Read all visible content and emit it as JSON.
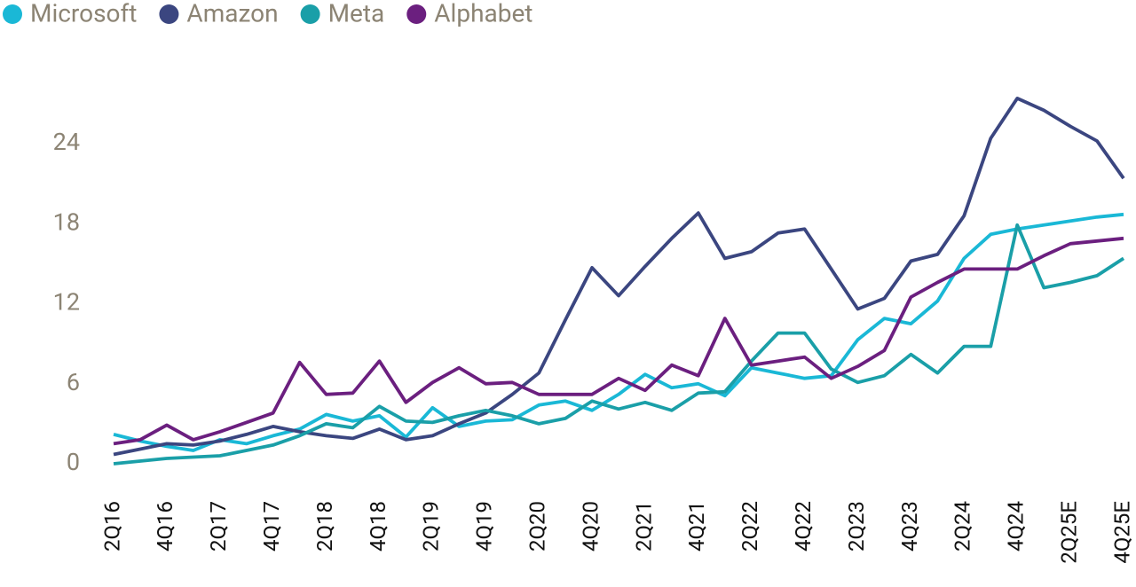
{
  "chart_data": {
    "type": "line",
    "categories": [
      "2Q16",
      null,
      "4Q16",
      null,
      "2Q17",
      null,
      "4Q17",
      null,
      "2Q18",
      null,
      "4Q18",
      null,
      "2Q19",
      null,
      "4Q19",
      null,
      "2Q20",
      null,
      "4Q20",
      null,
      "2Q21",
      null,
      "4Q21",
      null,
      "2Q22",
      null,
      "4Q22",
      null,
      "2Q23",
      null,
      "4Q23",
      null,
      "2Q24",
      null,
      "4Q24",
      null,
      "2Q25E",
      null,
      "4Q25E"
    ],
    "series": [
      {
        "name": "Microsoft",
        "color": "#1ab8d6",
        "values": [
          2.2,
          1.7,
          1.3,
          1.0,
          1.8,
          1.5,
          2.1,
          2.6,
          3.7,
          3.2,
          3.6,
          2.0,
          4.2,
          2.8,
          3.2,
          3.3,
          4.4,
          4.7,
          4.0,
          5.2,
          6.7,
          5.7,
          6.0,
          5.1,
          7.2,
          6.8,
          6.4,
          6.6,
          9.3,
          10.9,
          10.5,
          12.2,
          15.4,
          17.2,
          17.6,
          17.9,
          18.2,
          18.5,
          18.7
        ]
      },
      {
        "name": "Amazon",
        "color": "#3b4680",
        "values": [
          0.7,
          1.1,
          1.5,
          1.4,
          1.7,
          2.2,
          2.8,
          2.4,
          2.1,
          1.9,
          2.6,
          1.8,
          2.1,
          3.0,
          3.8,
          5.2,
          6.8,
          10.8,
          14.7,
          12.6,
          14.8,
          16.9,
          18.8,
          15.4,
          15.9,
          17.3,
          17.6,
          14.6,
          11.6,
          12.4,
          15.2,
          15.7,
          18.6,
          24.4,
          27.4,
          26.5,
          25.3,
          24.2,
          21.4
        ]
      },
      {
        "name": "Meta",
        "color": "#1a9fa8",
        "values": [
          0.0,
          0.2,
          0.4,
          0.5,
          0.6,
          1.0,
          1.4,
          2.1,
          3.0,
          2.7,
          4.3,
          3.2,
          3.1,
          3.6,
          4.0,
          3.6,
          3.0,
          3.4,
          4.7,
          4.1,
          4.6,
          4.0,
          5.3,
          5.4,
          7.7,
          9.8,
          9.8,
          7.1,
          6.1,
          6.6,
          8.2,
          6.8,
          8.8,
          8.8,
          17.9,
          13.2,
          13.6,
          14.1,
          15.4
        ]
      },
      {
        "name": "Alphabet",
        "color": "#6b1f7f",
        "values": [
          1.5,
          1.8,
          2.9,
          1.8,
          2.4,
          3.1,
          3.8,
          7.6,
          5.2,
          5.3,
          7.7,
          4.6,
          6.1,
          7.2,
          6.0,
          6.1,
          5.2,
          5.2,
          5.2,
          6.4,
          5.5,
          7.4,
          6.6,
          10.9,
          7.4,
          7.7,
          8.0,
          6.4,
          7.3,
          8.5,
          12.5,
          13.6,
          14.6,
          14.6,
          14.6,
          15.6,
          16.5,
          16.7,
          16.9
        ]
      }
    ],
    "ylim": [
      0,
      28
    ],
    "yticks": [
      0,
      6,
      12,
      18,
      24
    ]
  }
}
